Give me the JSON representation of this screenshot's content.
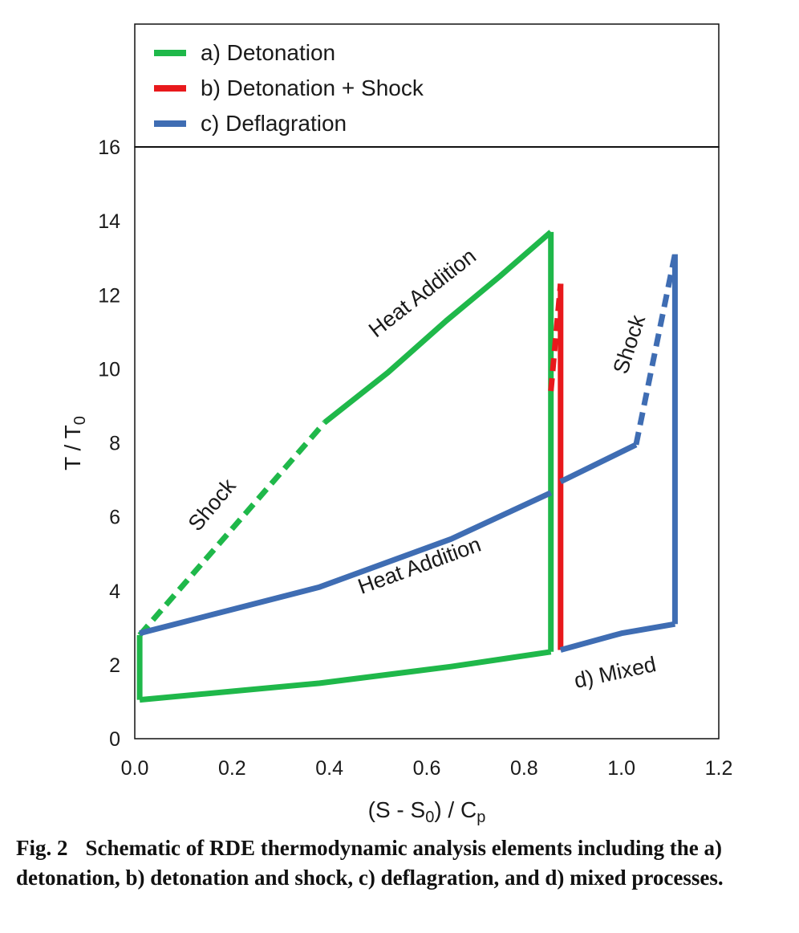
{
  "chart_data": {
    "type": "line",
    "xlabel": "(S - S0) / Cp",
    "xlabel_parts": {
      "a": "(S - S",
      "b": "0",
      "c": ") / C",
      "d": "p"
    },
    "ylabel": "T / T0",
    "ylabel_parts": {
      "a": "T / T",
      "b": "0"
    },
    "xlim": [
      0.0,
      1.2
    ],
    "ylim": [
      0,
      16
    ],
    "xticks": [
      "0.0",
      "0.2",
      "0.4",
      "0.6",
      "0.8",
      "1.0",
      "1.2"
    ],
    "yticks": [
      "0",
      "2",
      "4",
      "6",
      "8",
      "10",
      "12",
      "14",
      "16"
    ],
    "grid": false,
    "legend_position": "top",
    "series": [
      {
        "name": "a) Detonation",
        "color": "#1fb84a",
        "segments": [
          {
            "style": "dashed",
            "x": [
              0.01,
              0.39
            ],
            "y": [
              2.8,
              8.55
            ]
          },
          {
            "style": "solid",
            "x": [
              0.39,
              0.52,
              0.64,
              0.75,
              0.855
            ],
            "y": [
              8.55,
              9.9,
              11.3,
              12.5,
              13.7
            ]
          },
          {
            "style": "solid",
            "x": [
              0.855,
              0.855
            ],
            "y": [
              13.7,
              2.35
            ]
          },
          {
            "style": "solid",
            "x": [
              0.855,
              0.65,
              0.38,
              0.01
            ],
            "y": [
              2.35,
              1.95,
              1.5,
              1.05
            ]
          },
          {
            "style": "solid",
            "x": [
              0.01,
              0.01
            ],
            "y": [
              1.05,
              2.8
            ]
          }
        ]
      },
      {
        "name": "b) Detonation + Shock",
        "color": "#e8191c",
        "segments": [
          {
            "style": "dashed",
            "x": [
              0.855,
              0.875
            ],
            "y": [
              9.4,
              12.3
            ]
          },
          {
            "style": "solid",
            "x": [
              0.875,
              0.875
            ],
            "y": [
              12.3,
              2.4
            ]
          }
        ]
      },
      {
        "name": "c) Deflagration",
        "color": "#3f6db3",
        "segments": [
          {
            "style": "solid",
            "x": [
              0.01,
              0.38,
              0.65,
              0.855
            ],
            "y": [
              2.85,
              4.1,
              5.4,
              6.65
            ]
          },
          {
            "style": "solid",
            "x": [
              0.875,
              1.03
            ],
            "y": [
              6.95,
              7.95
            ]
          },
          {
            "style": "dashed",
            "x": [
              1.03,
              1.11
            ],
            "y": [
              7.95,
              13.1
            ]
          },
          {
            "style": "solid",
            "x": [
              1.11,
              1.11
            ],
            "y": [
              13.1,
              3.1
            ]
          },
          {
            "style": "solid",
            "x": [
              1.11,
              1.0,
              0.875
            ],
            "y": [
              3.1,
              2.85,
              2.4
            ]
          }
        ]
      }
    ],
    "annotations": [
      {
        "text": "Shock",
        "x": 0.17,
        "y": 6.2,
        "angle": -50
      },
      {
        "text": "Heat Addition",
        "x": 0.6,
        "y": 11.9,
        "angle": -38
      },
      {
        "text": "Heat Addition",
        "x": 0.59,
        "y": 4.5,
        "angle": -20
      },
      {
        "text": "Shock",
        "x": 1.03,
        "y": 10.6,
        "angle": -72
      },
      {
        "text": "d) Mixed",
        "x": 0.99,
        "y": 1.6,
        "angle": -12
      }
    ]
  },
  "caption": {
    "fig_no": "Fig. 2",
    "text": "Schematic of RDE thermodynamic analysis elements including the a) detonation, b) detonation and shock, c) deflagration, and d) mixed processes."
  }
}
